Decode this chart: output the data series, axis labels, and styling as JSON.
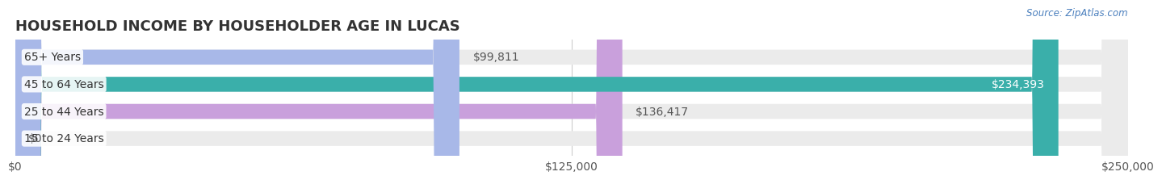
{
  "title": "HOUSEHOLD INCOME BY HOUSEHOLDER AGE IN LUCAS",
  "source": "Source: ZipAtlas.com",
  "categories": [
    "15 to 24 Years",
    "25 to 44 Years",
    "45 to 64 Years",
    "65+ Years"
  ],
  "values": [
    0,
    136417,
    234393,
    99811
  ],
  "bar_colors": [
    "#a8c4e0",
    "#c9a0dc",
    "#3aafaa",
    "#a8b8e8"
  ],
  "bar_bg_color": "#ebebeb",
  "xmax": 250000,
  "xticks": [
    0,
    125000,
    250000
  ],
  "xtick_labels": [
    "$0",
    "$125,000",
    "$250,000"
  ],
  "value_labels": [
    "$0",
    "$136,417",
    "$234,393",
    "$99,811"
  ],
  "label_colors": [
    "#555555",
    "#555555",
    "#ffffff",
    "#555555"
  ],
  "bg_color": "#ffffff",
  "title_fontsize": 13,
  "tick_fontsize": 10,
  "bar_label_fontsize": 10,
  "category_fontsize": 10
}
